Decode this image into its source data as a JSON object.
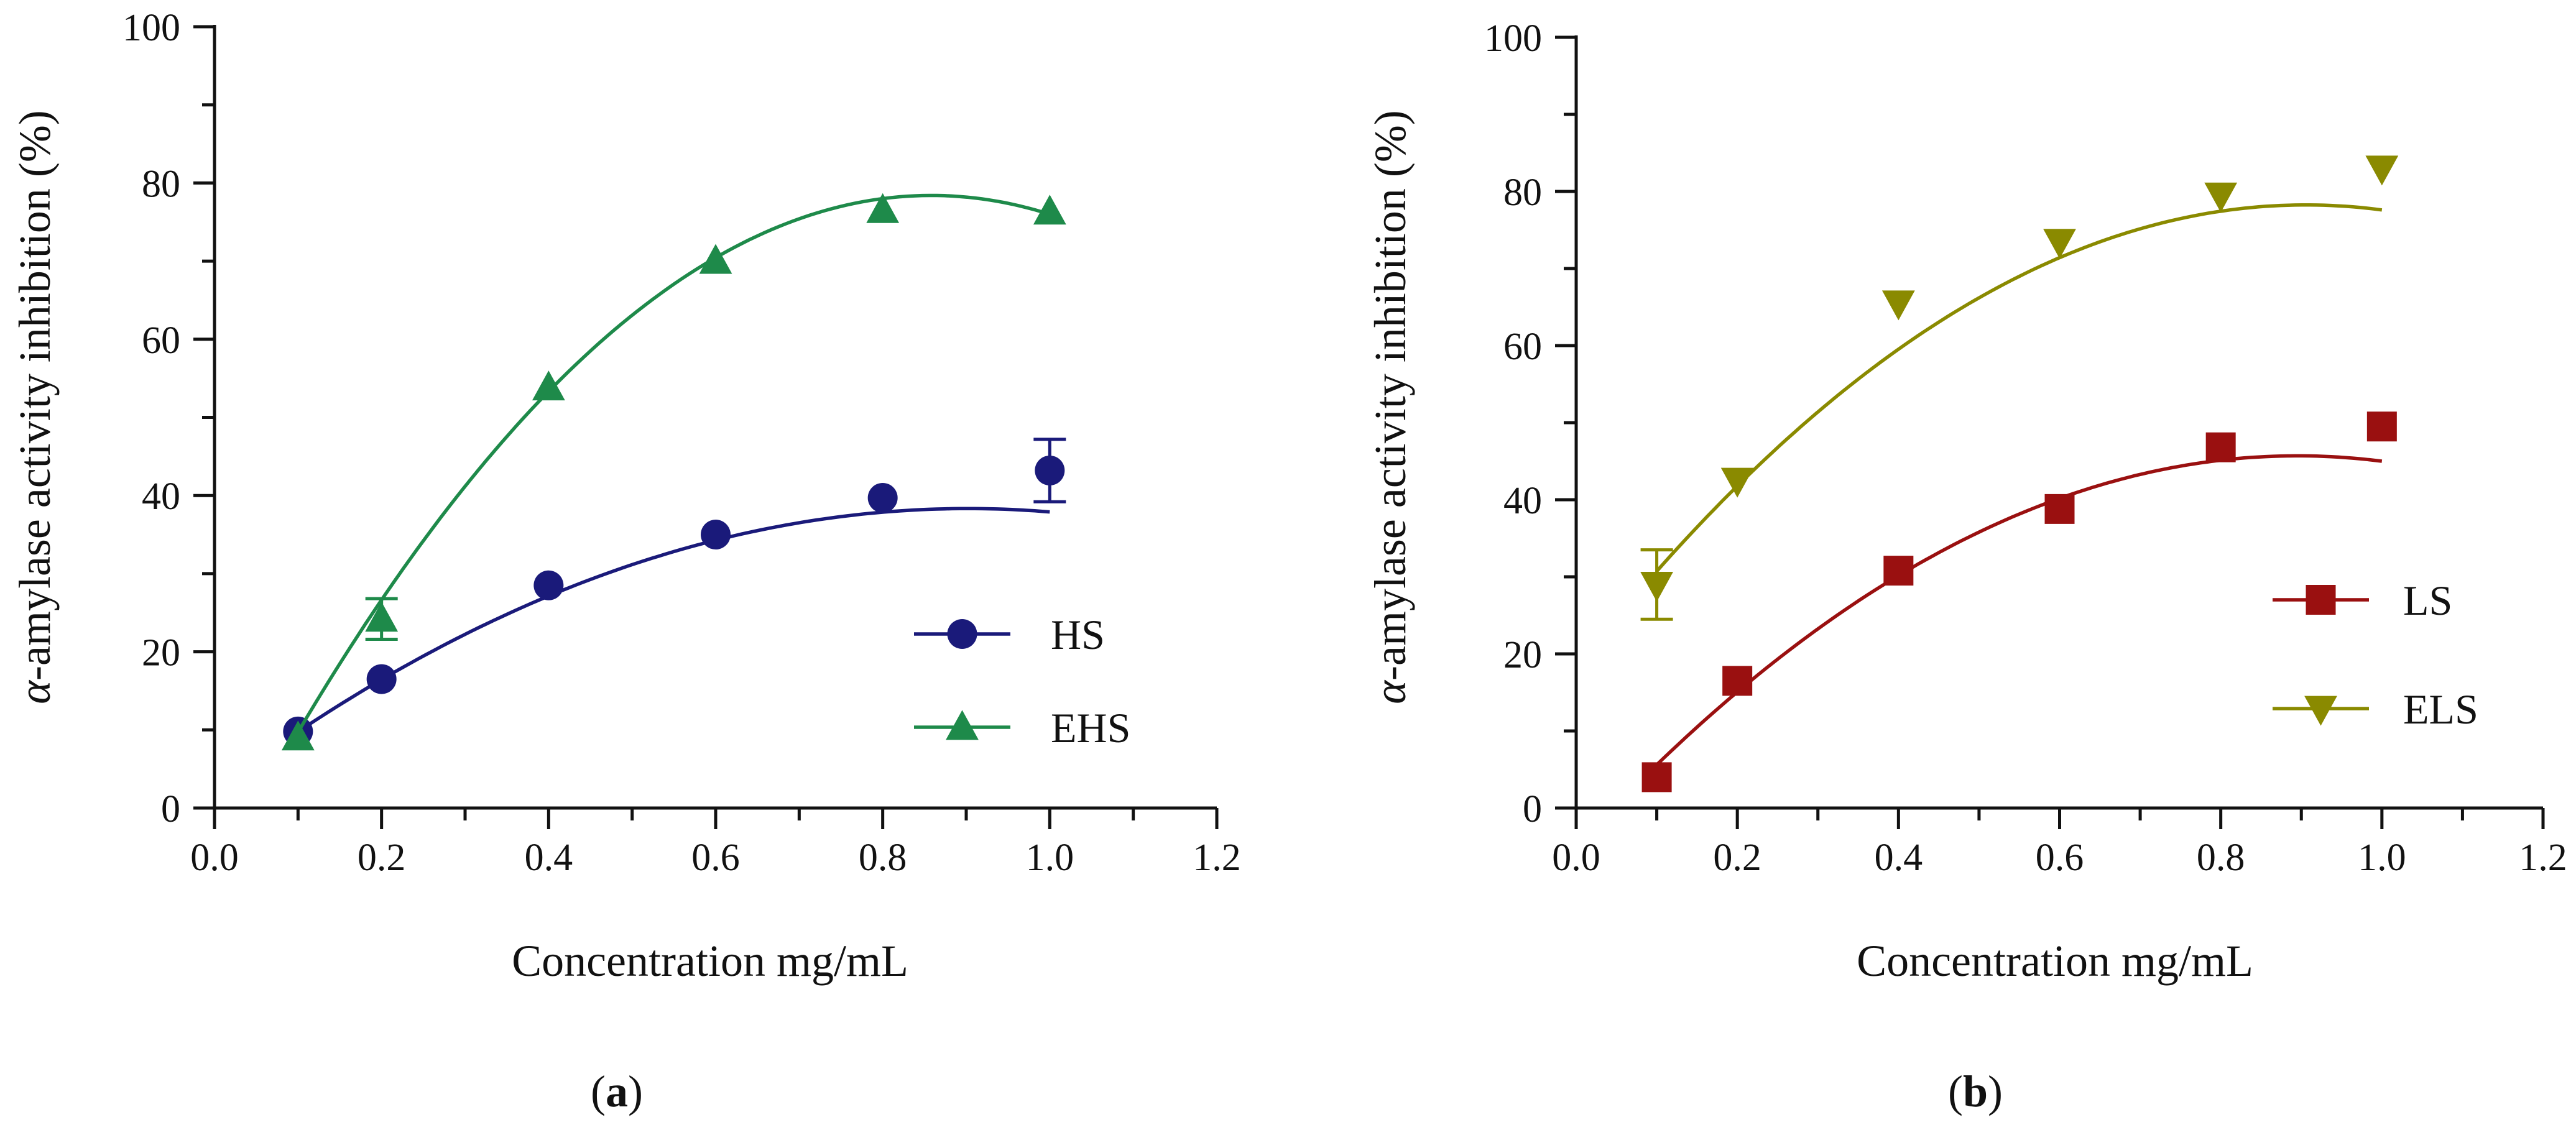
{
  "chart_data": [
    {
      "type": "scatter",
      "panel_label": "a",
      "xlabel": "Concentration mg/mL",
      "ylabel_alpha": "α",
      "ylabel": "-amylase  activity inhibition (%)",
      "xlim": [
        0,
        1.2
      ],
      "ylim": [
        0,
        100
      ],
      "x_ticks": [
        "0.0",
        "0.2",
        "0.4",
        "0.6",
        "0.8",
        "1.0",
        "1.2"
      ],
      "y_ticks": [
        "0",
        "20",
        "40",
        "60",
        "80",
        "100"
      ],
      "legend_position": "right-center",
      "series": [
        {
          "name": "HS",
          "color": "#1a1a7a",
          "marker": "circle",
          "x": [
            0.1,
            0.2,
            0.4,
            0.6,
            0.8,
            1.0
          ],
          "values": [
            9.8,
            16.5,
            28.5,
            35,
            39.7,
            43.2
          ],
          "error": [
            0,
            0,
            0,
            0,
            0,
            4
          ],
          "fit": [
            -44.4,
            80.1,
            2.2
          ]
        },
        {
          "name": "EHS",
          "color": "#1e8a4a",
          "marker": "triangle-up",
          "x": [
            0.1,
            0.2,
            0.4,
            0.6,
            0.8,
            1.0
          ],
          "values": [
            9,
            24.2,
            53.8,
            70,
            76.5,
            76.3
          ],
          "error": [
            0,
            2.6,
            0,
            0,
            0,
            0
          ],
          "fit": [
            -119.5,
            205.1,
            -9.6
          ]
        }
      ]
    },
    {
      "type": "scatter",
      "panel_label": "b",
      "xlabel": "Concentration mg/mL",
      "ylabel_alpha": "α",
      "ylabel": "-amylase  activity inhibition (%)",
      "xlim": [
        0,
        1.2
      ],
      "ylim": [
        0,
        100
      ],
      "x_ticks": [
        "0.0",
        "0.2",
        "0.4",
        "0.6",
        "0.8",
        "1.0",
        "1.2"
      ],
      "y_ticks": [
        "0",
        "20",
        "40",
        "60",
        "80",
        "100"
      ],
      "legend_position": "right-center",
      "series": [
        {
          "name": "LS",
          "color": "#9a1010",
          "marker": "square",
          "x": [
            0.1,
            0.2,
            0.4,
            0.6,
            0.8,
            1.0
          ],
          "values": [
            4,
            16.5,
            30.8,
            38.8,
            46.8,
            49.5
          ],
          "error": [
            0,
            0,
            0,
            0,
            0,
            0
          ],
          "fit": [
            -63.4,
            113.5,
            -5.1
          ]
        },
        {
          "name": "ELS",
          "color": "#8a8a00",
          "marker": "triangle-down",
          "x": [
            0.1,
            0.2,
            0.4,
            0.6,
            0.8,
            1.0
          ],
          "values": [
            29,
            42.5,
            65.5,
            73.5,
            79.5,
            83
          ],
          "error": [
            4.5,
            0,
            0,
            0,
            0,
            0
          ],
          "fit": [
            -73.2,
            132.6,
            18.2
          ]
        }
      ]
    }
  ]
}
